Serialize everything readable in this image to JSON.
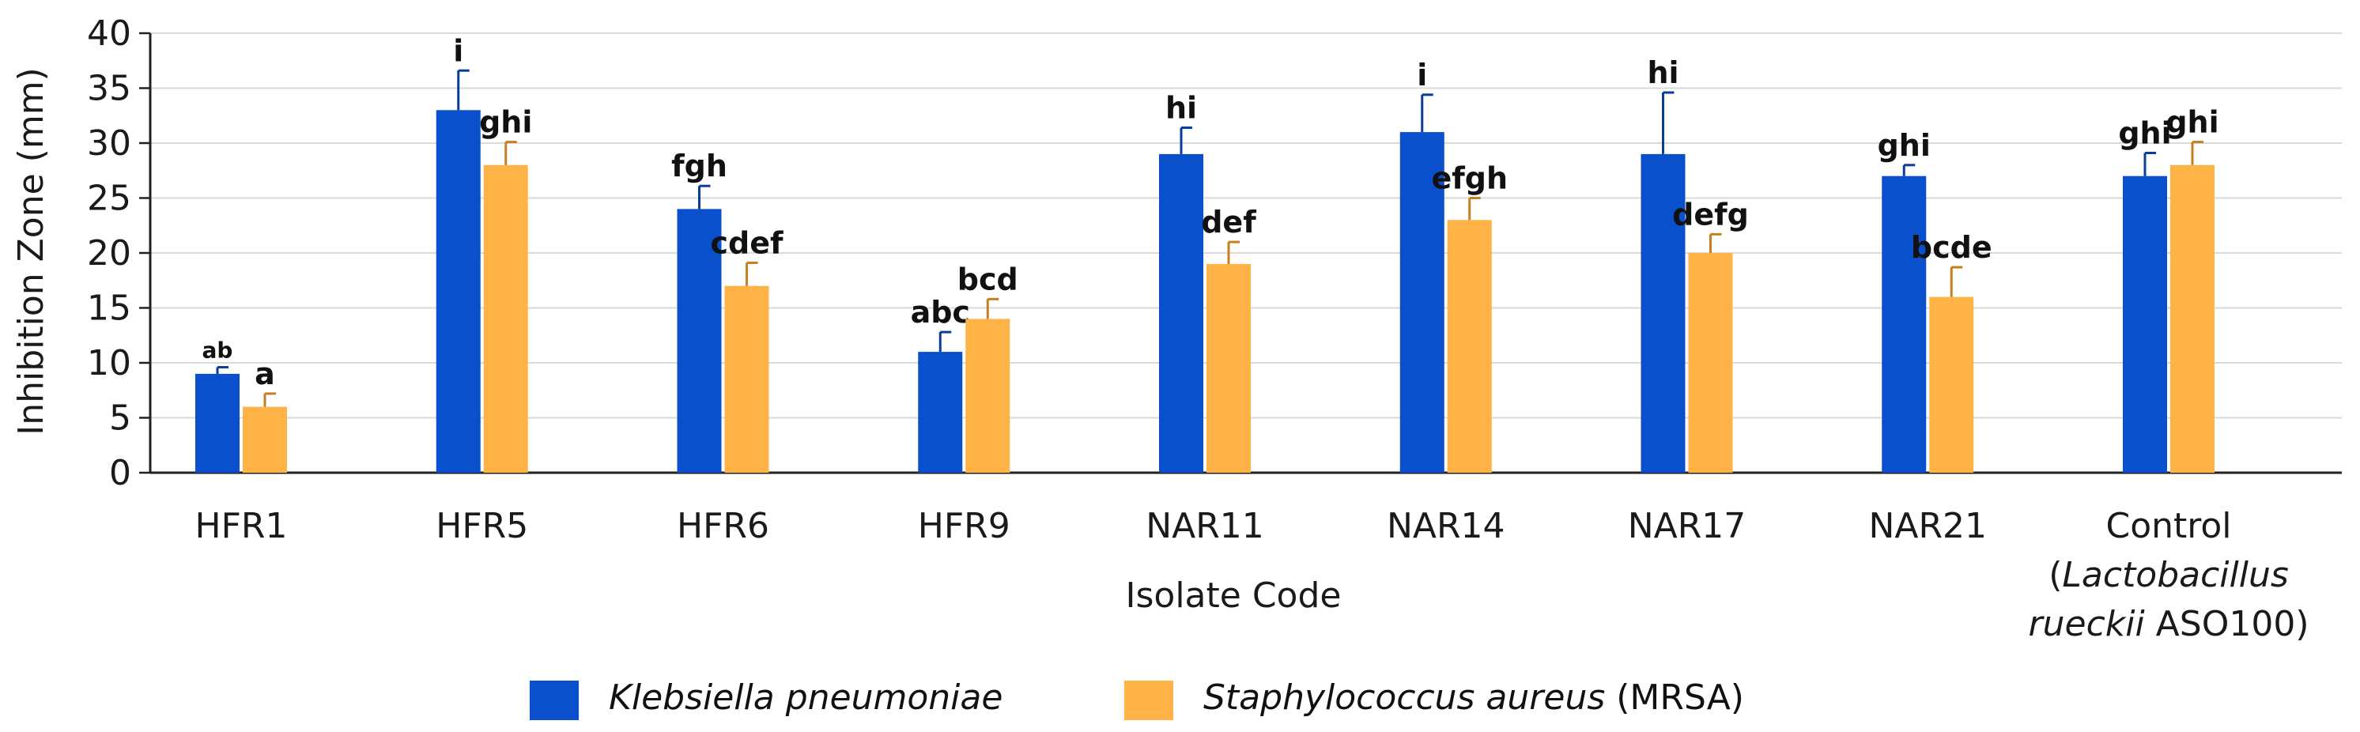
{
  "chart_data": {
    "type": "bar",
    "ylabel": "Inhibition Zone (mm)",
    "xlabel": "Isolate Code",
    "ylim": [
      0,
      40
    ],
    "yticks": [
      0,
      5,
      10,
      15,
      20,
      25,
      30,
      35,
      40
    ],
    "grid": true,
    "categories": [
      "HFR1",
      "HFR5",
      "HFR6",
      "HFR9",
      "NAR11",
      "NAR14",
      "NAR17",
      "NAR21",
      "Control"
    ],
    "control_label": {
      "line1": "Control",
      "line2_italic": "Lactobacillus",
      "line3_italic": "rueckii",
      "line3_rest": " ASO100)",
      "open_paren": "(",
      "close_paren": ")"
    },
    "series": [
      {
        "name": "Klebsiella pneumoniae",
        "name_suffix": "",
        "color": "#0a4fcc",
        "values": [
          9,
          33,
          24,
          11,
          29,
          31,
          29,
          27,
          27
        ],
        "errors": [
          0.6,
          3.6,
          2.1,
          1.8,
          2.4,
          3.4,
          5.6,
          1.0,
          2.1
        ],
        "letters": [
          "ab",
          "i",
          "fgh",
          "abc",
          "hi",
          "i",
          "hi",
          "ghi",
          "ghi"
        ]
      },
      {
        "name": "Staphylococcus aureus",
        "name_suffix": " (MRSA)",
        "color": "#ffb347",
        "values": [
          6,
          28,
          17,
          14,
          19,
          23,
          20,
          16,
          28
        ],
        "errors": [
          1.2,
          2.1,
          2.1,
          1.8,
          2.0,
          2.0,
          1.7,
          2.7,
          2.1
        ],
        "letters": [
          "a",
          "ghi",
          "cdef",
          "bcd",
          "def",
          "efgh",
          "defg",
          "bcde",
          "ghi"
        ]
      }
    ],
    "legend_position": "bottom-center"
  }
}
